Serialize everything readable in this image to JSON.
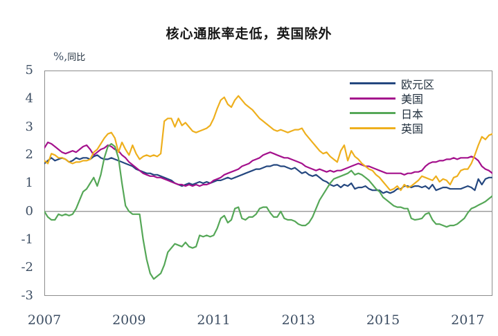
{
  "page": {
    "background": "#ffffff"
  },
  "chart_data": {
    "type": "line",
    "title": "核心通胀率走低，英国除外",
    "y_unit_percent": "%,",
    "y_unit_cjk": "同比",
    "frequency": "monthly",
    "x_start": 2007.0,
    "x_step": 0.0833333,
    "x_range": [
      2007.0,
      2017.583
    ],
    "y_range": [
      -3,
      5
    ],
    "x_ticks": [
      2007,
      2009,
      2011,
      2013,
      2015,
      2017
    ],
    "y_ticks": [
      5,
      4,
      3,
      2,
      1,
      0,
      -1,
      -2,
      -3
    ],
    "grid": false,
    "zero_line": true,
    "legend_position": "top-right-inside",
    "axis_color": "#8c8c8c",
    "tick_label_color": "#3d4e63",
    "series": [
      {
        "name": "欧元区",
        "color": "#24477f",
        "values": [
          1.7,
          1.8,
          1.9,
          1.8,
          1.85,
          1.9,
          1.85,
          1.75,
          1.8,
          1.9,
          1.85,
          1.9,
          1.9,
          1.85,
          1.95,
          2.0,
          1.9,
          1.85,
          1.85,
          1.9,
          1.85,
          1.8,
          1.75,
          1.7,
          1.65,
          1.6,
          1.5,
          1.45,
          1.4,
          1.35,
          1.35,
          1.3,
          1.3,
          1.25,
          1.2,
          1.15,
          1.1,
          1.0,
          0.95,
          0.9,
          0.95,
          1.0,
          0.95,
          1.0,
          1.05,
          1.0,
          1.05,
          1.0,
          1.05,
          1.1,
          1.1,
          1.15,
          1.2,
          1.15,
          1.2,
          1.25,
          1.3,
          1.35,
          1.4,
          1.45,
          1.5,
          1.5,
          1.55,
          1.6,
          1.6,
          1.65,
          1.65,
          1.6,
          1.6,
          1.55,
          1.5,
          1.55,
          1.45,
          1.35,
          1.4,
          1.3,
          1.25,
          1.3,
          1.2,
          1.1,
          1.05,
          0.95,
          0.9,
          0.95,
          0.85,
          0.95,
          0.9,
          1.0,
          0.8,
          0.85,
          0.85,
          0.9,
          0.8,
          0.75,
          0.75,
          0.75,
          0.65,
          0.7,
          0.65,
          0.7,
          0.8,
          0.8,
          0.9,
          0.9,
          0.85,
          0.9,
          0.9,
          0.85,
          0.9,
          0.8,
          0.95,
          0.75,
          0.8,
          0.85,
          0.85,
          0.8,
          0.8,
          0.8,
          0.8,
          0.85,
          0.9,
          0.85,
          0.75,
          1.15,
          0.95,
          1.15,
          1.2,
          1.2
        ]
      },
      {
        "name": "美国",
        "color": "#a4108c",
        "values": [
          2.25,
          2.45,
          2.4,
          2.3,
          2.2,
          2.1,
          2.05,
          2.1,
          2.15,
          2.1,
          2.2,
          2.3,
          2.35,
          2.2,
          2.0,
          2.1,
          2.2,
          2.25,
          2.35,
          2.3,
          2.2,
          2.15,
          2.0,
          1.9,
          1.75,
          1.65,
          1.55,
          1.45,
          1.35,
          1.3,
          1.25,
          1.25,
          1.2,
          1.2,
          1.15,
          1.1,
          1.05,
          1.0,
          0.95,
          0.95,
          0.9,
          0.95,
          0.9,
          0.95,
          0.9,
          0.95,
          0.95,
          1.0,
          1.1,
          1.15,
          1.2,
          1.3,
          1.35,
          1.4,
          1.45,
          1.5,
          1.6,
          1.65,
          1.7,
          1.8,
          1.85,
          1.9,
          2.0,
          2.05,
          2.1,
          2.05,
          2.0,
          1.95,
          1.9,
          1.9,
          1.85,
          1.8,
          1.75,
          1.7,
          1.6,
          1.55,
          1.5,
          1.45,
          1.5,
          1.45,
          1.4,
          1.45,
          1.4,
          1.45,
          1.45,
          1.5,
          1.55,
          1.6,
          1.65,
          1.7,
          1.65,
          1.6,
          1.6,
          1.55,
          1.5,
          1.45,
          1.4,
          1.35,
          1.35,
          1.35,
          1.35,
          1.35,
          1.3,
          1.35,
          1.35,
          1.4,
          1.4,
          1.45,
          1.6,
          1.7,
          1.75,
          1.75,
          1.8,
          1.8,
          1.85,
          1.85,
          1.9,
          1.85,
          1.9,
          1.9,
          1.9,
          1.95,
          1.9,
          1.8,
          1.6,
          1.5,
          1.45,
          1.35
        ]
      },
      {
        "name": "日本",
        "color": "#55a757",
        "values": [
          0.0,
          -0.2,
          -0.3,
          -0.3,
          -0.1,
          -0.15,
          -0.1,
          -0.15,
          -0.1,
          0.1,
          0.4,
          0.7,
          0.8,
          1.0,
          1.2,
          0.9,
          1.3,
          1.9,
          2.3,
          2.4,
          2.3,
          1.9,
          1.0,
          0.2,
          0.0,
          -0.1,
          -0.1,
          -0.1,
          -1.0,
          -1.7,
          -2.2,
          -2.4,
          -2.3,
          -2.2,
          -1.9,
          -1.45,
          -1.3,
          -1.15,
          -1.2,
          -1.25,
          -1.1,
          -1.25,
          -1.3,
          -1.25,
          -0.85,
          -0.9,
          -0.85,
          -0.9,
          -0.85,
          -0.6,
          -0.25,
          -0.15,
          -0.4,
          -0.3,
          0.1,
          0.15,
          -0.25,
          -0.3,
          -0.2,
          -0.2,
          -0.1,
          0.1,
          0.15,
          0.15,
          -0.05,
          -0.2,
          -0.2,
          0.0,
          -0.25,
          -0.3,
          -0.3,
          -0.35,
          -0.45,
          -0.5,
          -0.5,
          -0.4,
          -0.2,
          0.1,
          0.4,
          0.6,
          0.8,
          1.0,
          1.15,
          1.2,
          1.25,
          1.3,
          1.35,
          1.45,
          1.3,
          1.35,
          1.3,
          1.2,
          1.1,
          0.95,
          0.8,
          0.7,
          0.5,
          0.4,
          0.3,
          0.2,
          0.15,
          0.15,
          0.1,
          0.1,
          -0.25,
          -0.3,
          -0.28,
          -0.25,
          -0.1,
          -0.05,
          -0.3,
          -0.45,
          -0.45,
          -0.5,
          -0.55,
          -0.5,
          -0.5,
          -0.45,
          -0.35,
          -0.25,
          -0.05,
          0.1,
          0.15,
          0.22,
          0.28,
          0.35,
          0.45,
          0.55
        ]
      },
      {
        "name": "英国",
        "color": "#eeaf1d",
        "values": [
          1.8,
          1.7,
          2.05,
          2.0,
          1.9,
          1.9,
          1.85,
          1.75,
          1.7,
          1.75,
          1.75,
          1.8,
          1.8,
          1.85,
          2.1,
          2.2,
          2.4,
          2.6,
          2.75,
          2.8,
          2.6,
          2.1,
          2.45,
          2.2,
          2.0,
          2.35,
          2.05,
          1.85,
          1.95,
          2.0,
          1.95,
          2.0,
          1.95,
          2.05,
          3.2,
          3.3,
          3.3,
          3.0,
          3.3,
          3.05,
          3.15,
          3.0,
          2.85,
          2.8,
          2.85,
          2.9,
          2.95,
          3.05,
          3.3,
          3.65,
          3.95,
          4.05,
          3.8,
          3.7,
          3.95,
          4.1,
          3.95,
          3.8,
          3.7,
          3.6,
          3.45,
          3.3,
          3.2,
          3.1,
          3.0,
          2.9,
          2.85,
          2.9,
          2.85,
          2.8,
          2.85,
          2.9,
          2.9,
          2.95,
          2.75,
          2.6,
          2.45,
          2.3,
          2.15,
          2.05,
          2.1,
          1.95,
          1.85,
          1.75,
          2.15,
          2.35,
          1.8,
          2.15,
          1.95,
          1.85,
          1.7,
          1.6,
          1.5,
          1.45,
          1.3,
          1.2,
          1.05,
          0.9,
          0.75,
          0.8,
          0.9,
          0.75,
          0.95,
          0.85,
          0.9,
          1.0,
          1.1,
          1.25,
          1.2,
          1.15,
          1.1,
          1.25,
          1.05,
          1.15,
          1.1,
          0.95,
          1.2,
          1.25,
          1.45,
          1.5,
          1.5,
          1.7,
          2.0,
          2.35,
          2.65,
          2.55,
          2.7,
          2.75
        ]
      }
    ]
  }
}
